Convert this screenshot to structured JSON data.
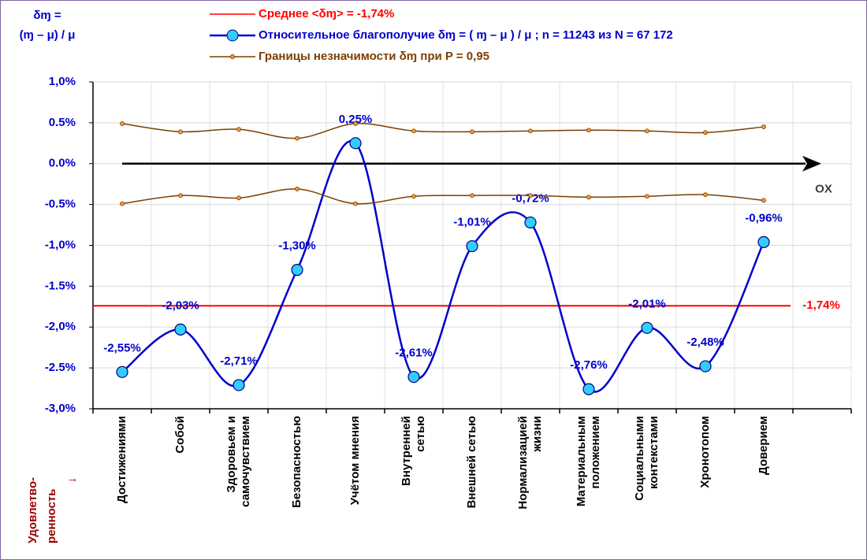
{
  "chart_data": {
    "type": "line",
    "ylabel": [
      "δɱ =",
      "(ɱ – μ) / μ"
    ],
    "xlabel": [
      "Удовлетво-",
      "ренность"
    ],
    "xlabel_arrow": "→",
    "axis_label": "OX",
    "categories": [
      "Достижениями",
      "Собой",
      "Здоровьем и\nсамочувствием",
      "Безопасностью",
      "Учётом мнения",
      "Внутренней\nсетью",
      "Внешней сетью",
      "Нормализацией\nжизни",
      "Материальным\nположением",
      "Социальными\nконтекстами",
      "Хронотопом",
      "Доверием",
      null
    ],
    "mean": {
      "name": "Среднее <δɱ> = -1,74%",
      "value": -1.74,
      "value_label": "-1,74%",
      "color": "#ff0000"
    },
    "series": [
      {
        "name": "Относительное благополучие δɱ = ( ɱ – μ ) / μ ; n = 11243 из N = 67 172",
        "color": "#0000cc",
        "values": [
          -2.55,
          -2.03,
          -2.71,
          -1.3,
          0.25,
          -2.61,
          -1.01,
          -0.72,
          -2.76,
          -2.01,
          -2.48,
          -0.96,
          null
        ],
        "value_labels": [
          "-2,55%",
          "-2,03%",
          "-2,71%",
          "-1,30%",
          "0,25%",
          "-2,61%",
          "-1,01%",
          "-0,72%",
          "-2,76%",
          "-2,01%",
          "-2,48%",
          "-0,96%",
          null
        ]
      },
      {
        "name": "Границы незначимости δɱ при P = 0,95",
        "color": "#7b3f00",
        "values": [
          0.49,
          0.39,
          0.42,
          0.31,
          0.49,
          0.4,
          0.39,
          0.4,
          0.41,
          0.4,
          0.38,
          0.45,
          null
        ]
      },
      {
        "name": null,
        "color": "#7b3f00",
        "values": [
          -0.49,
          -0.39,
          -0.42,
          -0.31,
          -0.49,
          -0.4,
          -0.39,
          -0.39,
          -0.41,
          -0.4,
          -0.38,
          -0.45,
          null
        ]
      }
    ],
    "ylim": [
      -3.0,
      1.0
    ],
    "yticks": [
      {
        "value": -3.0,
        "label": "-3,0%"
      },
      {
        "value": -2.5,
        "label": "-2.5%"
      },
      {
        "value": -2.0,
        "label": "-2,0%"
      },
      {
        "value": -1.5,
        "label": "-1.5%"
      },
      {
        "value": -1.0,
        "label": "-1,0%"
      },
      {
        "value": -0.5,
        "label": "-0.5%"
      },
      {
        "value": 0.0,
        "label": "0.0%"
      },
      {
        "value": 0.5,
        "label": "0.5%"
      },
      {
        "value": 1.0,
        "label": "1,0%"
      }
    ],
    "grid": true
  }
}
